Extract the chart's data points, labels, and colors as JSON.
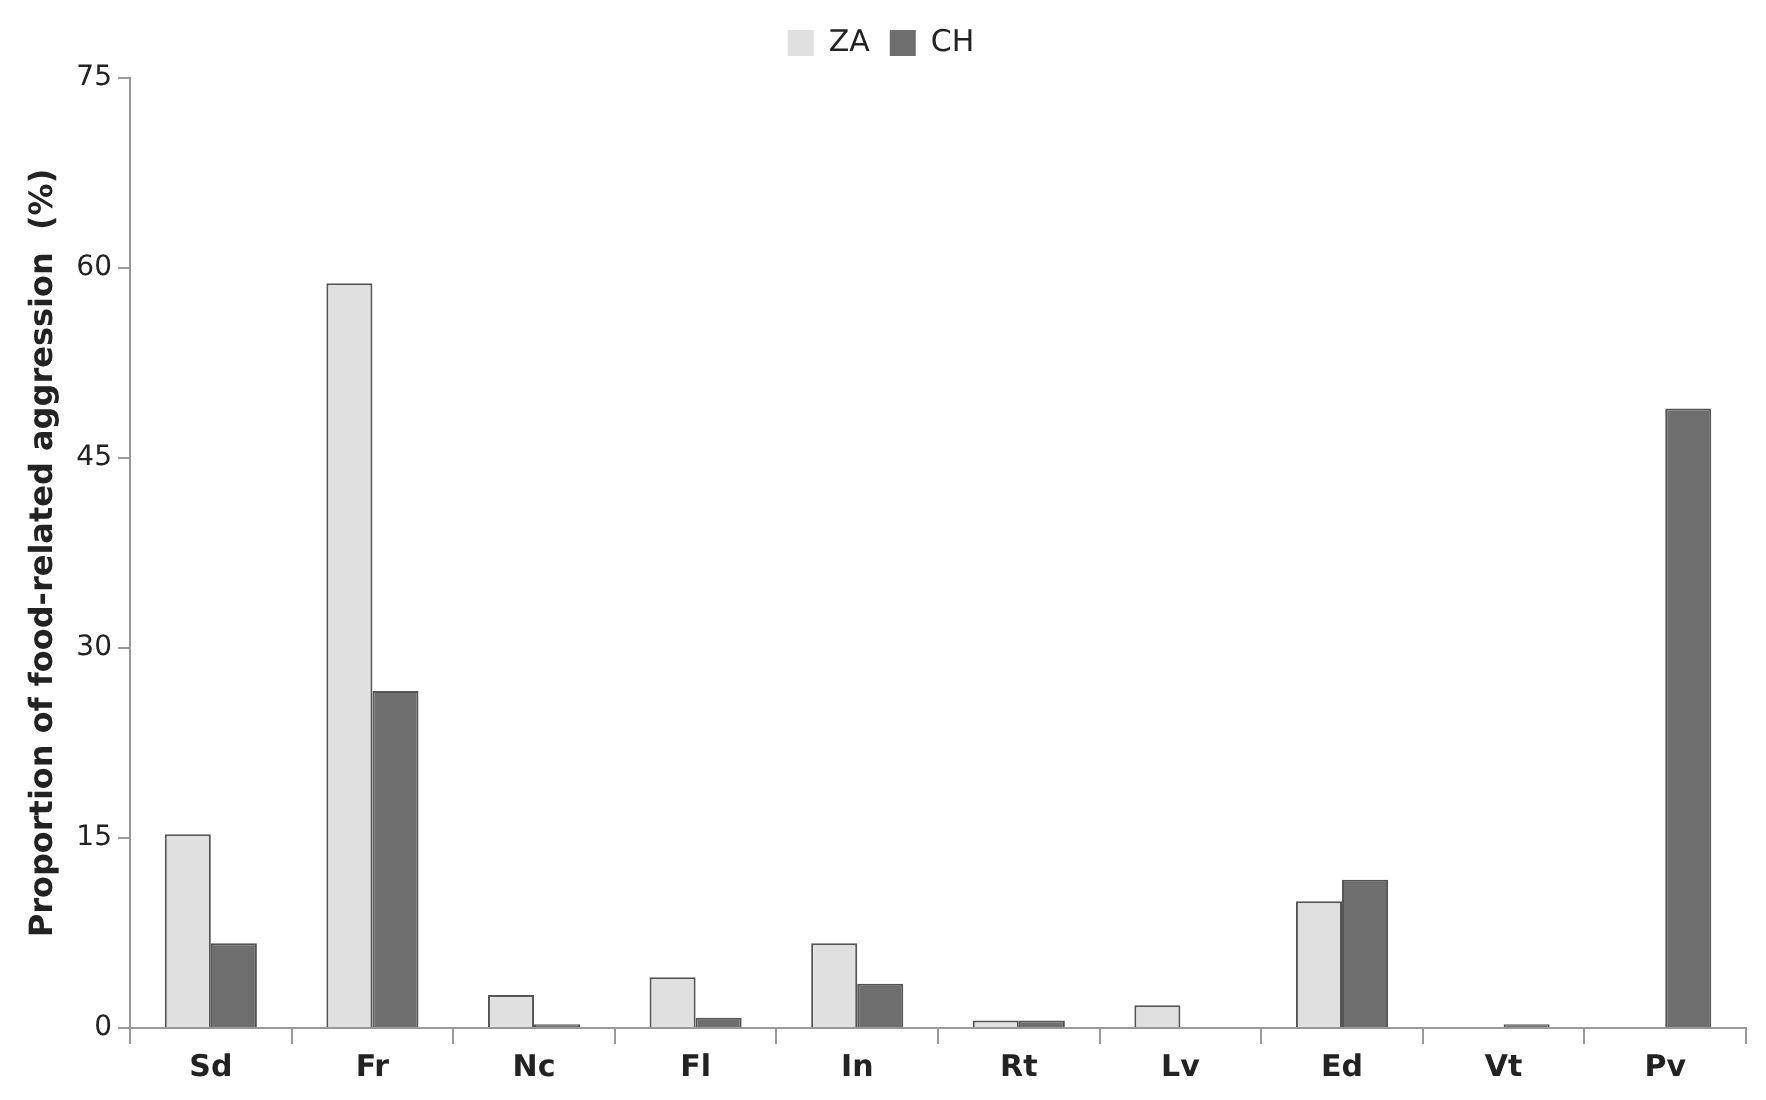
{
  "chart_data": {
    "type": "bar",
    "ylabel": "Proportion of food-related aggression  (%)",
    "categories": [
      "Sd",
      "Fr",
      "Nc",
      "Fl",
      "In",
      "Rt",
      "Lv",
      "Ed",
      "Vt",
      "Pv"
    ],
    "series": [
      {
        "name": "ZA",
        "color": "#e0e0e0",
        "values": [
          15.3,
          58.8,
          2.6,
          4.0,
          6.7,
          0.6,
          1.8,
          10.0,
          0,
          0
        ]
      },
      {
        "name": "CH",
        "color": "#6e6e6e",
        "values": [
          6.7,
          26.6,
          0.3,
          0.8,
          3.5,
          0.6,
          0,
          11.7,
          0.3,
          48.9
        ]
      }
    ],
    "ylim": [
      0,
      75
    ],
    "yticks": [
      0,
      15,
      30,
      45,
      60,
      75
    ],
    "grid": false,
    "legend": "top"
  }
}
